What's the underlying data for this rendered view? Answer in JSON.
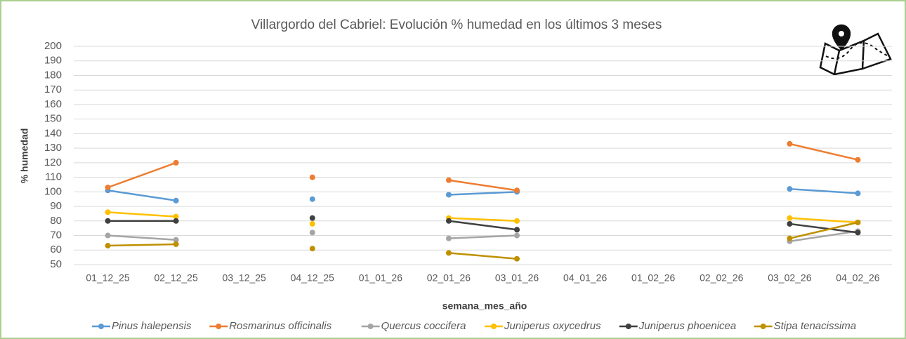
{
  "chart_data": {
    "type": "line",
    "title": "Villargordo del Cabriel: Evolución % humedad en los últimos 3 meses",
    "x_label": "semana_mes_año",
    "y_label": "% humedad",
    "categories": [
      "01_12_25",
      "02_12_25",
      "03_12_25",
      "04_12_25",
      "01_01_26",
      "02_01_26",
      "03_01_26",
      "04_01_26",
      "01_02_26",
      "02_02_26",
      "03_02_26",
      "04_02_26"
    ],
    "ylim": [
      50,
      200
    ],
    "yticks": [
      50,
      60,
      70,
      80,
      90,
      100,
      110,
      120,
      130,
      140,
      150,
      160,
      170,
      180,
      190,
      200
    ],
    "grid": true,
    "legend": "bottom",
    "series": [
      {
        "name": "Pinus halepensis",
        "color": "#5b9bd5",
        "values": [
          101,
          94,
          null,
          95,
          null,
          98,
          100,
          null,
          null,
          null,
          102,
          99
        ]
      },
      {
        "name": "Rosmarinus officinalis",
        "color": "#ed7d31",
        "values": [
          103,
          120,
          null,
          110,
          null,
          108,
          101,
          null,
          null,
          null,
          133,
          122
        ]
      },
      {
        "name": "Quercus coccifera",
        "color": "#a5a5a5",
        "values": [
          70,
          67,
          null,
          72,
          null,
          68,
          70,
          null,
          null,
          null,
          66,
          73
        ]
      },
      {
        "name": "Juniperus oxycedrus",
        "color": "#ffc000",
        "values": [
          86,
          83,
          null,
          78,
          null,
          82,
          80,
          null,
          null,
          null,
          82,
          79
        ]
      },
      {
        "name": "Juniperus phoenicea",
        "color": "#404040",
        "values": [
          80,
          80,
          null,
          82,
          null,
          80,
          74,
          null,
          null,
          null,
          78,
          72
        ]
      },
      {
        "name": "Stipa tenacissima",
        "color": "#bf9000",
        "values": [
          63,
          64,
          null,
          61,
          null,
          58,
          54,
          null,
          null,
          null,
          68,
          79
        ]
      }
    ]
  }
}
